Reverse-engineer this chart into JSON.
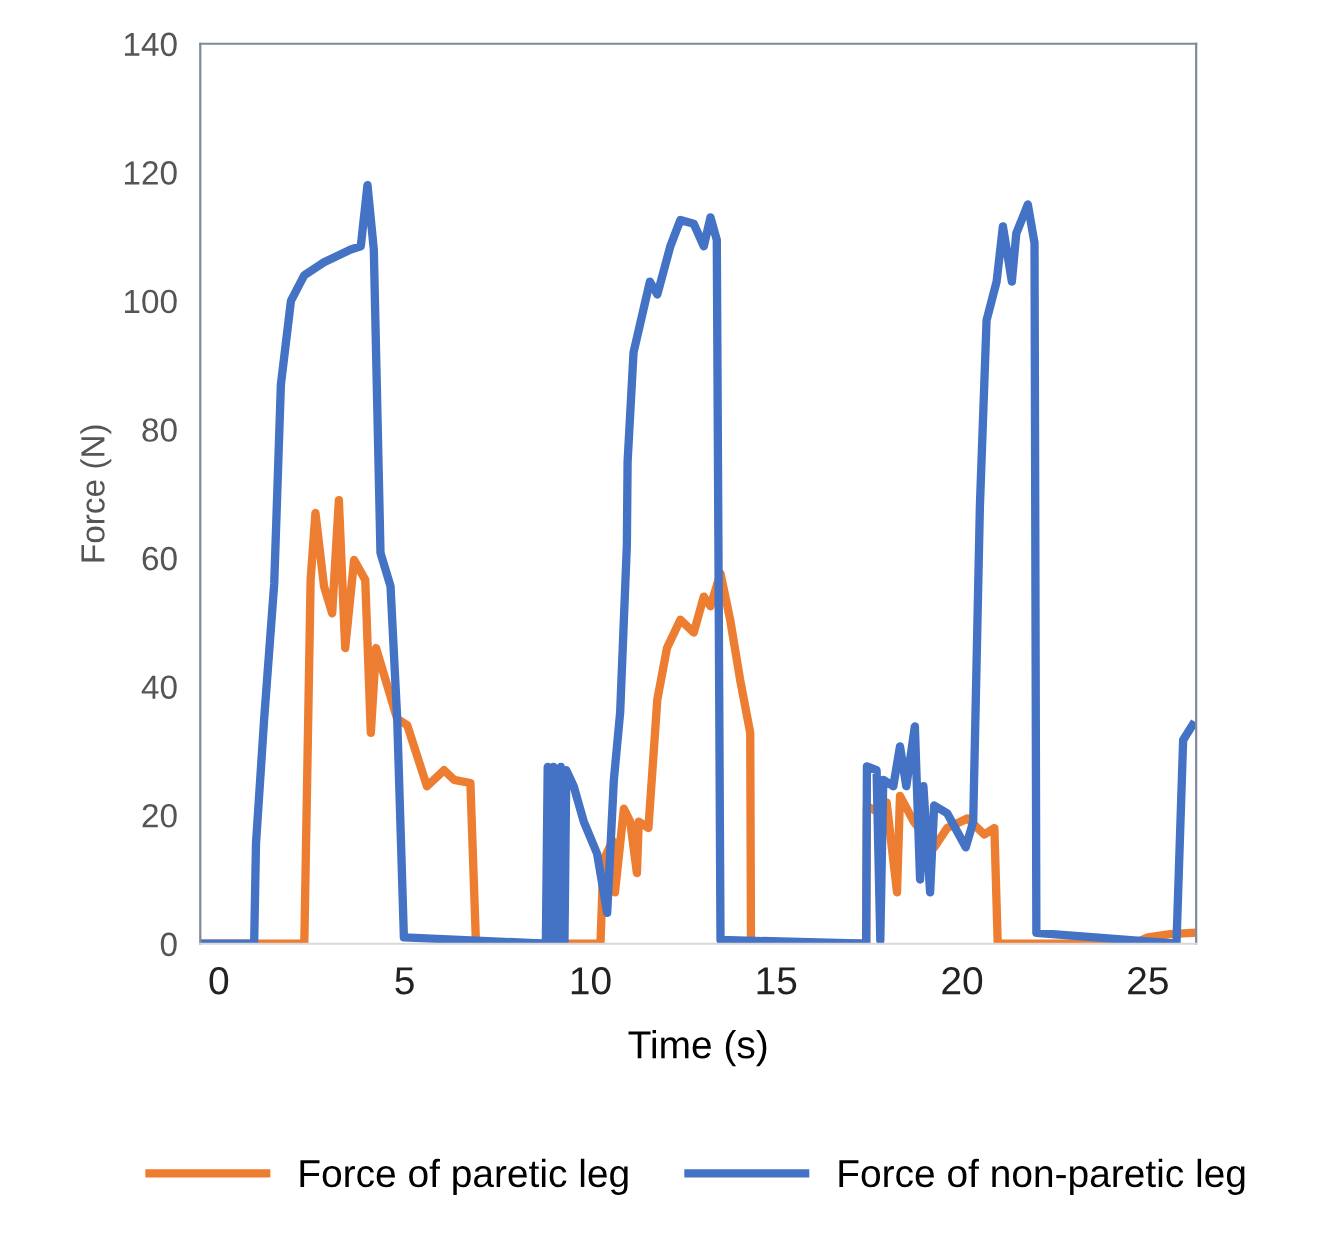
{
  "chart_data": {
    "type": "line",
    "xlabel": "Time (s)",
    "ylabel": "Force (N)",
    "xlim": [
      -0.5,
      26.3
    ],
    "xticks": [
      0,
      5,
      10,
      15,
      20,
      25
    ],
    "ylim": [
      0,
      140
    ],
    "yticks": [
      0,
      20,
      40,
      60,
      80,
      100,
      120,
      140
    ],
    "grid": false,
    "legend": "bottom",
    "marker": "none",
    "line_style": "solid",
    "series": [
      {
        "name": "Force of paretic leg",
        "color": "#ed7d31",
        "x": [
          -0.45,
          2.3,
          2.47,
          2.6,
          2.83,
          3.05,
          3.23,
          3.4,
          3.64,
          3.94,
          4.09,
          4.23,
          4.8,
          5.07,
          5.6,
          6.06,
          6.33,
          6.77,
          6.92,
          10.27,
          10.35,
          10.6,
          10.66,
          10.9,
          11.07,
          11.25,
          11.3,
          11.56,
          11.8,
          12.06,
          12.42,
          12.78,
          13.05,
          13.23,
          13.5,
          13.76,
          14.03,
          14.3,
          14.32,
          17.42,
          17.44,
          17.8,
          17.97,
          18.25,
          18.33,
          18.7,
          19.25,
          19.6,
          20.15,
          20.6,
          20.87,
          20.96,
          24.6,
          25.0,
          25.6,
          26.2
        ],
        "values": [
          0,
          0,
          56.6,
          67,
          55.6,
          51.4,
          69,
          46,
          59.7,
          56.6,
          32.8,
          46,
          35,
          34,
          24.5,
          27,
          25.5,
          25,
          0,
          0,
          13,
          16,
          8,
          21,
          19,
          11,
          19,
          18,
          38,
          46,
          50.4,
          48.4,
          54,
          52.5,
          57.6,
          50.4,
          41,
          32.8,
          0,
          0,
          21.4,
          20.3,
          22,
          8,
          23,
          19,
          15,
          18,
          19.5,
          17,
          18,
          0,
          0,
          1,
          1.5,
          1.7
        ]
      },
      {
        "name": "Force of non-paretic leg",
        "color": "#4472c4",
        "x": [
          -0.45,
          0.95,
          1.0,
          1.22,
          1.49,
          1.67,
          1.94,
          2.3,
          2.83,
          3.55,
          3.82,
          4.0,
          4.17,
          4.35,
          4.62,
          4.8,
          4.98,
          8.8,
          8.85,
          8.95,
          9.0,
          9.1,
          9.2,
          9.3,
          9.35,
          9.55,
          9.82,
          10.18,
          10.45,
          10.63,
          10.8,
          10.98,
          11.0,
          11.16,
          11.4,
          11.6,
          11.8,
          12.15,
          12.42,
          12.78,
          13.05,
          13.23,
          13.4,
          13.5,
          17.42,
          17.44,
          17.7,
          17.8,
          17.88,
          18.15,
          18.33,
          18.5,
          18.73,
          18.87,
          18.96,
          19.14,
          19.25,
          19.6,
          20.1,
          20.3,
          20.48,
          20.66,
          20.93,
          21.1,
          21.34,
          21.46,
          21.77,
          21.95,
          22.0,
          25.77,
          25.95,
          26.2
        ],
        "values": [
          0,
          0,
          15.6,
          35,
          56,
          87,
          100,
          104,
          106,
          108,
          108.5,
          118,
          108,
          60.8,
          55.6,
          35,
          1,
          0,
          27.5,
          0,
          27.5,
          0,
          27.5,
          0,
          27,
          24.5,
          19,
          14,
          4.8,
          25.5,
          36,
          62,
          75,
          92,
          98,
          103,
          101,
          108.5,
          112.6,
          112,
          108.5,
          113,
          109.5,
          0.6,
          0,
          27.6,
          27,
          0.5,
          25.5,
          24.5,
          30.7,
          24.5,
          33.8,
          10,
          24.5,
          8,
          21.5,
          20.3,
          15,
          19,
          68,
          97,
          103,
          111.6,
          103,
          110.5,
          115,
          109,
          1.7,
          0,
          31.7,
          34
        ]
      }
    ]
  }
}
